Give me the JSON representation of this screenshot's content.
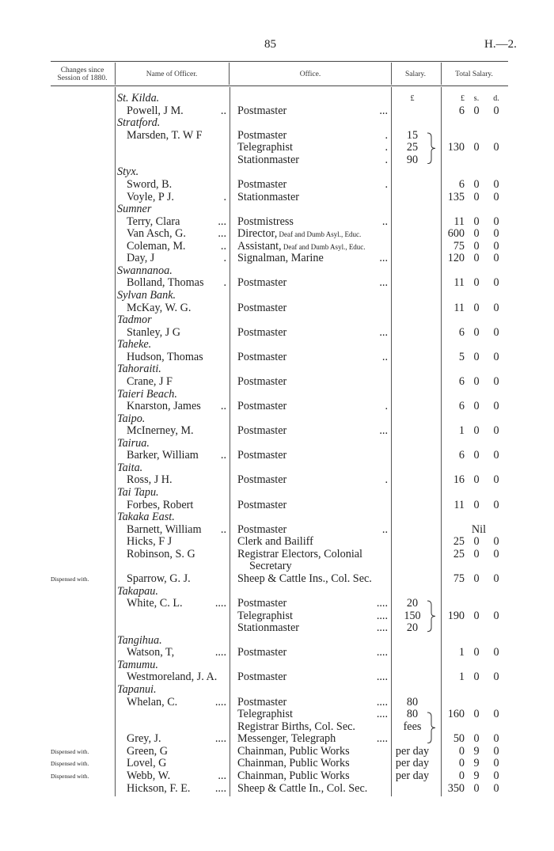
{
  "page": {
    "number": "85",
    "reference": "H.—2."
  },
  "columns": {
    "changes": "Changes since Session of 1880.",
    "name": "Name of Officer.",
    "office": "Office.",
    "salary": "Salary.",
    "total": "Total Salary."
  },
  "units": {
    "salary": "£",
    "pounds": "£",
    "shillings": "s.",
    "pence": "d."
  },
  "rows": [
    {
      "place": "St. Kilda.",
      "units": true
    },
    {
      "name": "Powell, J M.",
      "ndots": "..",
      "office": "Postmaster",
      "odots": "...",
      "total": [
        "6",
        "0",
        "0"
      ]
    },
    {
      "place": "Stratford."
    },
    {
      "name": "Marsden, T. W F",
      "office": "Postmaster",
      "odots": ".",
      "salary": "15"
    },
    {
      "office": "Telegraphist",
      "odots": ".",
      "salary": "25",
      "total": [
        "130",
        "0",
        "0"
      ]
    },
    {
      "office": "Stationmaster",
      "odots": ".",
      "salary": "90"
    },
    {
      "place": "Styx."
    },
    {
      "name": "Sword, B.",
      "office": "Postmaster",
      "odots": ".",
      "total": [
        "6",
        "0",
        "0"
      ]
    },
    {
      "name": "Voyle, P J.",
      "ndots": ".",
      "office": "Stationmaster",
      "total": [
        "135",
        "0",
        "0"
      ]
    },
    {
      "place": "Sumner"
    },
    {
      "name": "Terry, Clara",
      "ndots": "...",
      "office": "Postmistress",
      "odots": "..",
      "total": [
        "11",
        "0",
        "0"
      ]
    },
    {
      "name": "Van Asch, G.",
      "ndots": "...",
      "office": "Director,",
      "office_small": "Deaf and Dumb Asyl., Educ.",
      "total": [
        "600",
        "0",
        "0"
      ]
    },
    {
      "name": "Coleman, M.",
      "ndots": "..",
      "office": "Assistant,",
      "office_small": "Deaf and Dumb Asyl., Educ.",
      "total": [
        "75",
        "0",
        "0"
      ]
    },
    {
      "name": "Day, J",
      "ndots": ".",
      "office": "Signalman, Marine",
      "odots": "...",
      "total": [
        "120",
        "0",
        "0"
      ]
    },
    {
      "place": "Swannanoa."
    },
    {
      "name": "Bolland, Thomas",
      "ndots": ".",
      "office": "Postmaster",
      "odots": "...",
      "total": [
        "11",
        "0",
        "0"
      ]
    },
    {
      "place": "Sylvan Bank."
    },
    {
      "name": "McKay, W. G.",
      "office": "Postmaster",
      "total": [
        "11",
        "0",
        "0"
      ]
    },
    {
      "place": "Tadmor"
    },
    {
      "name": "Stanley, J G",
      "office": "Postmaster",
      "odots": "...",
      "total": [
        "6",
        "0",
        "0"
      ]
    },
    {
      "place": "Taheke."
    },
    {
      "name": "Hudson, Thomas",
      "office": "Postmaster",
      "odots": "..",
      "total": [
        "5",
        "0",
        "0"
      ]
    },
    {
      "place": "Tahoraiti."
    },
    {
      "name": "Crane, J F",
      "office": "Postmaster",
      "total": [
        "6",
        "0",
        "0"
      ]
    },
    {
      "place": "Taieri Beach."
    },
    {
      "name": "Knarston, James",
      "ndots": "..",
      "office": "Postmaster",
      "odots": ".",
      "total": [
        "6",
        "0",
        "0"
      ]
    },
    {
      "place": "Taipo."
    },
    {
      "name": "McInerney, M.",
      "office": "Postmaster",
      "odots": "...",
      "total": [
        "1",
        "0",
        "0"
      ]
    },
    {
      "place": "Tairua."
    },
    {
      "name": "Barker, William",
      "ndots": "..",
      "office": "Postmaster",
      "total": [
        "6",
        "0",
        "0"
      ]
    },
    {
      "place": "Taita."
    },
    {
      "name": "Ross, J H.",
      "office": "Postmaster",
      "odots": ".",
      "total": [
        "16",
        "0",
        "0"
      ]
    },
    {
      "place": "Tai Tapu."
    },
    {
      "name": "Forbes, Robert",
      "office": "Postmaster",
      "total": [
        "11",
        "0",
        "0"
      ]
    },
    {
      "place": "Takaka East."
    },
    {
      "name": "Barnett, William",
      "ndots": "..",
      "office": "Postmaster",
      "odots": "..",
      "total_text": "Nil"
    },
    {
      "name": "Hicks, F J",
      "office": "Clerk and Bailiff",
      "total": [
        "25",
        "0",
        "0"
      ]
    },
    {
      "name": "Robinson, S. G",
      "office": "Registrar Electors, Colonial",
      "total": [
        "25",
        "0",
        "0"
      ]
    },
    {
      "office": "Secretary",
      "indent": true
    },
    {
      "change": "Dispensed with.",
      "name": "Sparrow, G. J.",
      "office": "Sheep & Cattle Ins., Col. Sec.",
      "total": [
        "75",
        "0",
        "0"
      ]
    },
    {
      "place": "Takapau."
    },
    {
      "name": "White, C. L.",
      "ndots": "....",
      "office": "Postmaster",
      "odots": "....",
      "salary": "20"
    },
    {
      "office": "Telegraphist",
      "odots": "....",
      "salary": "150",
      "total": [
        "190",
        "0",
        "0"
      ]
    },
    {
      "office": "Stationmaster",
      "odots": "....",
      "salary": "20"
    },
    {
      "place": "Tangihua."
    },
    {
      "name": "Watson, T,",
      "ndots": "....",
      "office": "Postmaster",
      "odots": "....",
      "total": [
        "1",
        "0",
        "0"
      ]
    },
    {
      "place": "Tamumu."
    },
    {
      "name": "Westmoreland, J. A.",
      "office": "Postmaster",
      "odots": "....",
      "total": [
        "1",
        "0",
        "0"
      ]
    },
    {
      "place": "Tapanui."
    },
    {
      "name": "Whelan, C.",
      "ndots": "....",
      "office": "Postmaster",
      "odots": "....",
      "salary": "80"
    },
    {
      "office": "Telegraphist",
      "odots": "....",
      "salary": "80",
      "total": [
        "160",
        "0",
        "0"
      ]
    },
    {
      "office": "Registrar Births, Col. Sec.",
      "salary": "fees"
    },
    {
      "name": "Grey, J.",
      "ndots": "....",
      "office": "Messenger, Telegraph",
      "odots": "....",
      "total": [
        "50",
        "0",
        "0"
      ]
    },
    {
      "change": "Dispensed with.",
      "name": "Green, G",
      "office": "Chainman, Public Works",
      "salary": "per day",
      "total": [
        "0",
        "9",
        "0"
      ]
    },
    {
      "change": "Dispensed with.",
      "name": "Lovel, G",
      "office": "Chainman, Public Works",
      "salary": "per day",
      "total": [
        "0",
        "9",
        "0"
      ]
    },
    {
      "change": "Dispensed with.",
      "name": "Webb, W.",
      "ndots": "...",
      "office": "Chainman, Public Works",
      "salary": "per day",
      "total": [
        "0",
        "9",
        "0"
      ]
    },
    {
      "name": "Hickson, F. E.",
      "ndots": "....",
      "office": "Sheep & Cattle In., Col. Sec.",
      "total": [
        "350",
        "0",
        "0"
      ]
    }
  ],
  "salary_groups": [
    [
      3,
      5
    ],
    [
      41,
      43
    ],
    [
      50,
      52
    ]
  ]
}
